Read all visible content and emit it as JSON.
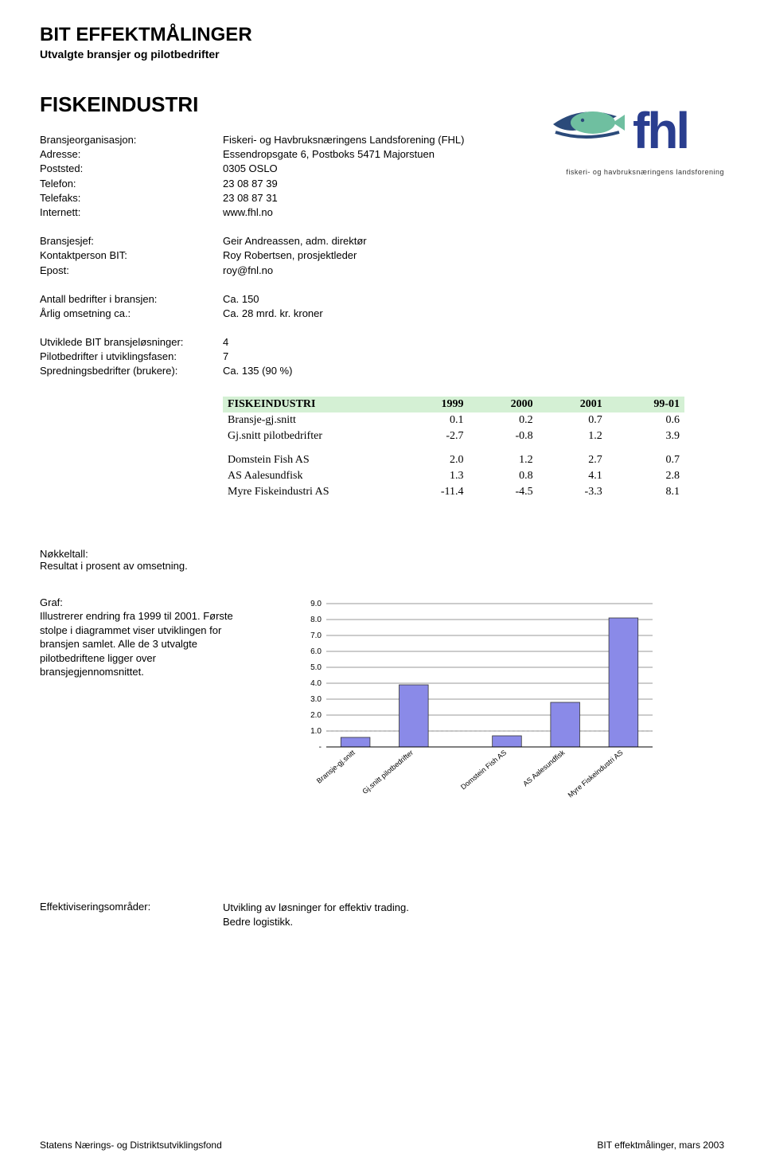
{
  "header": {
    "title": "BIT EFFEKTMÅLINGER",
    "subtitle": "Utvalgte bransjer og pilotbedrifter"
  },
  "logo": {
    "text": "fhl",
    "caption": "fiskeri- og havbruksnæringens landsforening",
    "blue": "#2a3e8f",
    "fish_green": "#6fbfa0",
    "fish_dark": "#2b4a7a"
  },
  "section": {
    "title": "FISKEINDUSTRI"
  },
  "org": {
    "rows": [
      {
        "k": "Bransjeorganisasjon:",
        "v": "Fiskeri- og Havbruksnæringens Landsforening (FHL)"
      },
      {
        "k": "Adresse:",
        "v": "Essendropsgate 6, Postboks 5471 Majorstuen"
      },
      {
        "k": "Poststed:",
        "v": "0305 OSLO"
      },
      {
        "k": "Telefon:",
        "v": "23 08 87 39"
      },
      {
        "k": "Telefaks:",
        "v": "23 08 87 31"
      },
      {
        "k": "Internett:",
        "v": "www.fhl.no"
      }
    ]
  },
  "contact": {
    "rows": [
      {
        "k": "Bransjesjef:",
        "v": "Geir Andreassen, adm. direktør"
      },
      {
        "k": "Kontaktperson BIT:",
        "v": "Roy Robertsen, prosjektleder"
      },
      {
        "k": "Epost:",
        "v": "roy@fnl.no"
      }
    ]
  },
  "stats": {
    "rows": [
      {
        "k": "Antall bedrifter i bransjen:",
        "v": "Ca. 150"
      },
      {
        "k": "Årlig omsetning ca.:",
        "v": "Ca. 28 mrd. kr. kroner"
      }
    ]
  },
  "dev": {
    "rows": [
      {
        "k": "Utviklede BIT bransjeløsninger:",
        "v": "4"
      },
      {
        "k": "Pilotbedrifter i utviklingsfasen:",
        "v": "7"
      },
      {
        "k": "Spredningsbedrifter (brukere):",
        "v": "Ca. 135  (90 %)"
      }
    ]
  },
  "table": {
    "header_bg": "#d4f0d4",
    "columns": [
      "FISKEINDUSTRI",
      "1999",
      "2000",
      "2001",
      "99-01"
    ],
    "rows": [
      [
        "Bransje-gj.snitt",
        "0.1",
        "0.2",
        "0.7",
        "0.6"
      ],
      [
        "Gj.snitt pilotbedrifter",
        "-2.7",
        "-0.8",
        "1.2",
        "3.9"
      ]
    ],
    "rows2": [
      [
        "Domstein Fish AS",
        "2.0",
        "1.2",
        "2.7",
        "0.7"
      ],
      [
        "AS Aalesundfisk",
        "1.3",
        "0.8",
        "4.1",
        "2.8"
      ],
      [
        "Myre Fiskeindustri AS",
        "-11.4",
        "-4.5",
        "-3.3",
        "8.1"
      ]
    ]
  },
  "notes": {
    "nokkeltall_label": "Nøkkeltall:",
    "nokkeltall_text": "Resultat i prosent av omsetning.",
    "graf_label": "Graf:",
    "graf_text": "Illustrerer endring fra 1999 til 2001. Første stolpe i diagrammet viser utviklingen for bransjen samlet. Alle de 3 utvalgte pilotbedriftene ligger over bransjegjennomsnittet."
  },
  "chart": {
    "type": "bar",
    "categories": [
      "Bransje-gj.snitt",
      "Gj.snitt pilotbedrifter",
      "Domstein Fish AS",
      "AS Aalesundfisk",
      "Myre Fiskeindustri AS"
    ],
    "values": [
      0.6,
      3.9,
      0.7,
      2.8,
      8.1
    ],
    "bar_color": "#8a8ae8",
    "bar_border": "#333333",
    "gridline_color": "#000000",
    "dashed_line_color": "#888888",
    "axis_color": "#000000",
    "background": "#ffffff",
    "ylim": [
      0,
      9
    ],
    "ytick_step": 1,
    "ytick_labels": [
      "-",
      "1.0",
      "2.0",
      "3.0",
      "4.0",
      "5.0",
      "6.0",
      "7.0",
      "8.0",
      "9.0"
    ],
    "label_fontsize": 9,
    "tick_fontsize": 10,
    "bar_width_ratio": 0.5,
    "dashed_ref_value": 1.0,
    "group_gap_after_index": 1
  },
  "effekt": {
    "label": "Effektiviseringsområder:",
    "line1": "Utvikling av løsninger for effektiv trading.",
    "line2": "Bedre logistikk."
  },
  "footer": {
    "left": "Statens Nærings- og Distriktsutviklingsfond",
    "right": "BIT effektmålinger, mars 2003"
  }
}
